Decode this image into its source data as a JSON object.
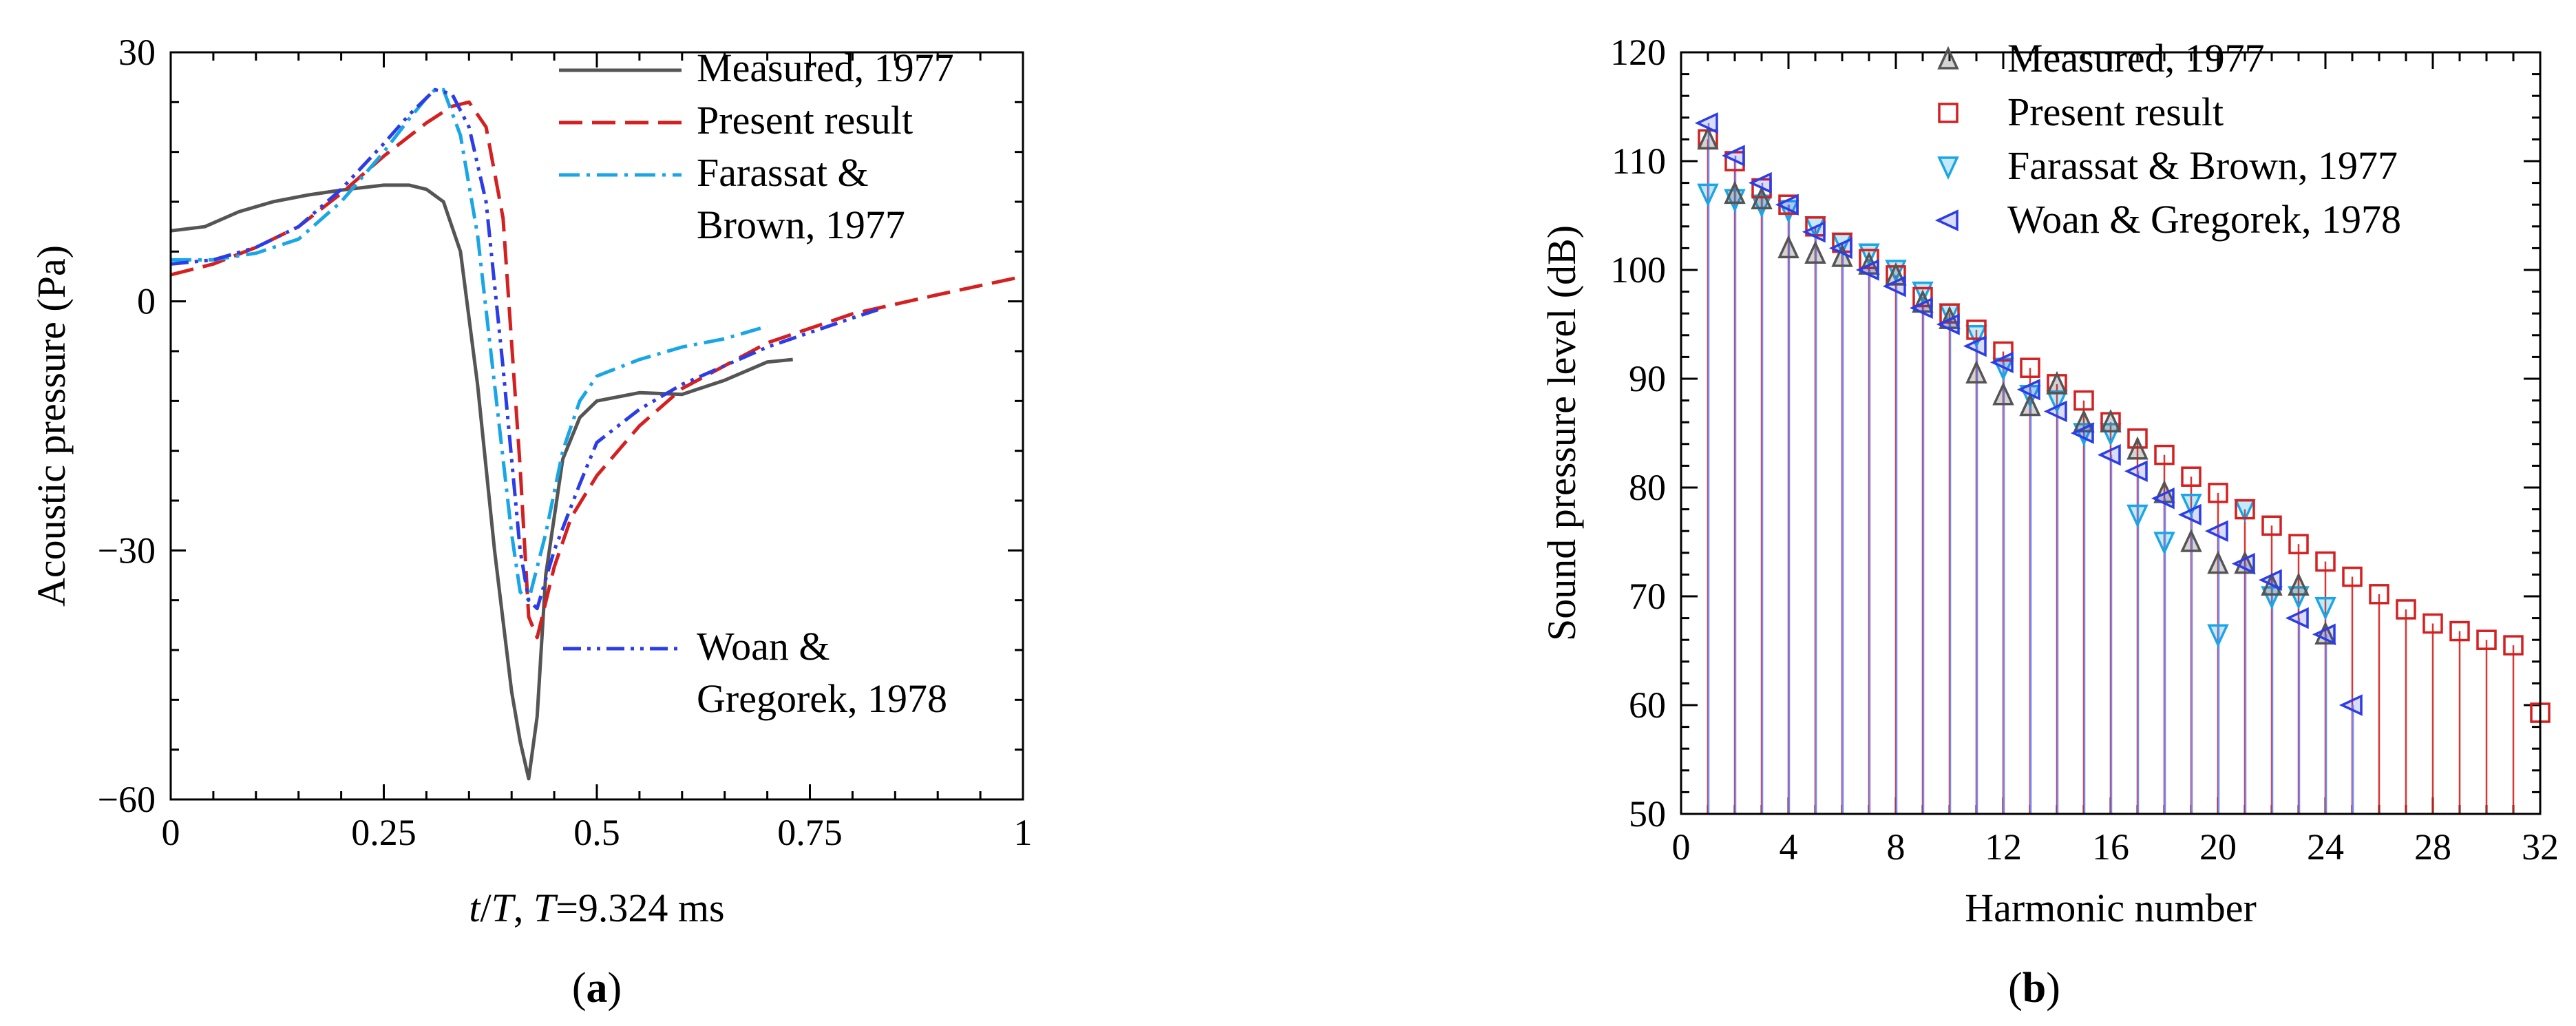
{
  "colors": {
    "measured": "#555555",
    "present": "#d42020",
    "farassat": "#1aa6e6",
    "woan": "#2c3ce6"
  },
  "chart_data": [
    {
      "type": "line",
      "panel_label": "a",
      "xlabel_italic": "t",
      "xlabel_mid": "/",
      "xlabel_italic2": "T",
      "xlabel_rest": ", ",
      "xlabel_italic3": "T",
      "xlabel_tail": "=9.324 ms",
      "ylabel": "Acoustic pressure (Pa)",
      "xlim": [
        0,
        1
      ],
      "ylim": [
        -60,
        30
      ],
      "x_ticks": [
        0,
        0.25,
        0.5,
        0.75,
        1
      ],
      "x_tick_labels": [
        "0",
        "0.25",
        "0.5",
        "0.75",
        "1"
      ],
      "y_ticks": [
        -60,
        -30,
        0,
        30
      ],
      "y_tick_labels": [
        "−60",
        "−30",
        "0",
        "30"
      ],
      "series": [
        {
          "name": "Measured, 1977",
          "color_key": "measured",
          "dash": "solid",
          "points": [
            [
              0,
              8.5
            ],
            [
              0.04,
              9
            ],
            [
              0.08,
              10.8
            ],
            [
              0.12,
              12
            ],
            [
              0.16,
              12.8
            ],
            [
              0.2,
              13.4
            ],
            [
              0.25,
              14
            ],
            [
              0.28,
              14
            ],
            [
              0.3,
              13.5
            ],
            [
              0.32,
              12
            ],
            [
              0.34,
              6
            ],
            [
              0.36,
              -10
            ],
            [
              0.38,
              -30
            ],
            [
              0.4,
              -47
            ],
            [
              0.41,
              -53
            ],
            [
              0.42,
              -57.5
            ],
            [
              0.43,
              -50
            ],
            [
              0.44,
              -33
            ],
            [
              0.46,
              -19
            ],
            [
              0.48,
              -14
            ],
            [
              0.5,
              -12
            ],
            [
              0.55,
              -11
            ],
            [
              0.6,
              -11.2
            ],
            [
              0.65,
              -9.5
            ],
            [
              0.7,
              -7.3
            ],
            [
              0.73,
              -7
            ]
          ]
        },
        {
          "name": "Present result",
          "color_key": "present",
          "dash": "dash",
          "points": [
            [
              0,
              3.2
            ],
            [
              0.05,
              4.5
            ],
            [
              0.1,
              6.5
            ],
            [
              0.15,
              9
            ],
            [
              0.2,
              13
            ],
            [
              0.25,
              17.5
            ],
            [
              0.3,
              21.5
            ],
            [
              0.33,
              23.5
            ],
            [
              0.35,
              24
            ],
            [
              0.37,
              21
            ],
            [
              0.39,
              10
            ],
            [
              0.41,
              -20
            ],
            [
              0.42,
              -38
            ],
            [
              0.43,
              -40.5
            ],
            [
              0.45,
              -32
            ],
            [
              0.47,
              -26
            ],
            [
              0.5,
              -21
            ],
            [
              0.55,
              -15
            ],
            [
              0.6,
              -10.5
            ],
            [
              0.7,
              -5
            ],
            [
              0.8,
              -1.5
            ],
            [
              0.9,
              0.8
            ],
            [
              1.0,
              3
            ]
          ]
        },
        {
          "name": "Farassat & Brown, 1977",
          "color_key": "farassat",
          "dash": "dashdot",
          "points": [
            [
              0,
              5
            ],
            [
              0.05,
              5
            ],
            [
              0.1,
              5.8
            ],
            [
              0.15,
              7.5
            ],
            [
              0.2,
              12
            ],
            [
              0.25,
              18
            ],
            [
              0.28,
              22
            ],
            [
              0.3,
              24.5
            ],
            [
              0.31,
              25.5
            ],
            [
              0.32,
              25.5
            ],
            [
              0.34,
              20
            ],
            [
              0.36,
              8
            ],
            [
              0.38,
              -10
            ],
            [
              0.4,
              -28
            ],
            [
              0.41,
              -35
            ],
            [
              0.42,
              -36
            ],
            [
              0.44,
              -28
            ],
            [
              0.46,
              -18
            ],
            [
              0.48,
              -12
            ],
            [
              0.5,
              -9
            ],
            [
              0.55,
              -7
            ],
            [
              0.6,
              -5.5
            ],
            [
              0.65,
              -4.5
            ],
            [
              0.7,
              -3
            ]
          ]
        },
        {
          "name": "Woan & Gregorek, 1978",
          "color_key": "woan",
          "dash": "dashdotdot",
          "points": [
            [
              0,
              4.5
            ],
            [
              0.05,
              5
            ],
            [
              0.1,
              6.5
            ],
            [
              0.15,
              9
            ],
            [
              0.2,
              13.5
            ],
            [
              0.25,
              19
            ],
            [
              0.28,
              22.5
            ],
            [
              0.31,
              25.5
            ],
            [
              0.33,
              25
            ],
            [
              0.35,
              21
            ],
            [
              0.37,
              12
            ],
            [
              0.39,
              -8
            ],
            [
              0.41,
              -30
            ],
            [
              0.42,
              -36
            ],
            [
              0.43,
              -37
            ],
            [
              0.45,
              -30
            ],
            [
              0.48,
              -22
            ],
            [
              0.5,
              -17
            ],
            [
              0.55,
              -13
            ],
            [
              0.6,
              -10
            ],
            [
              0.7,
              -5.5
            ],
            [
              0.8,
              -2
            ],
            [
              0.83,
              -1
            ]
          ]
        }
      ],
      "legend_top": [
        {
          "lines": [
            "Measured, 1977"
          ],
          "color_key": "measured",
          "dash": "solid"
        },
        {
          "lines": [
            "Present result"
          ],
          "color_key": "present",
          "dash": "dash"
        },
        {
          "lines": [
            "Farassat &",
            "Brown, 1977"
          ],
          "color_key": "farassat",
          "dash": "dashdot"
        }
      ],
      "legend_bottom": {
        "lines": [
          "Woan &",
          "Gregorek, 1978"
        ],
        "color_key": "woan",
        "dash": "dashdotdot"
      },
      "legend_placement": "top-right and lower-right"
    },
    {
      "type": "scatter",
      "panel_label": "b",
      "xlabel": "Harmonic number",
      "ylabel": "Sound pressure level (dB)",
      "xlim": [
        0,
        32
      ],
      "ylim": [
        50,
        120
      ],
      "x_ticks": [
        0,
        4,
        8,
        12,
        16,
        20,
        24,
        28,
        32
      ],
      "x_tick_labels": [
        "0",
        "4",
        "8",
        "12",
        "16",
        "20",
        "24",
        "28",
        "32"
      ],
      "y_ticks": [
        50,
        60,
        70,
        80,
        90,
        100,
        110,
        120
      ],
      "y_tick_labels": [
        "50",
        "60",
        "70",
        "80",
        "90",
        "100",
        "110",
        "120"
      ],
      "stems": {
        "present_harmonics_range": [
          1,
          31
        ],
        "woan_harmonics_range": [
          1,
          25
        ]
      },
      "series": [
        {
          "name": "Measured, 1977",
          "color_key": "measured",
          "marker": "triangle-up",
          "x": [
            1,
            2,
            3,
            4,
            5,
            6,
            7,
            8,
            9,
            10,
            11,
            12,
            13,
            14,
            15,
            16,
            17,
            18,
            19,
            20,
            21,
            22,
            23,
            24
          ],
          "values": [
            112,
            107,
            106.5,
            102,
            101.5,
            101.2,
            100.5,
            99.5,
            97,
            95.5,
            90.5,
            88.5,
            87.5,
            89.5,
            86,
            86,
            83.5,
            79.5,
            75,
            73,
            73,
            71,
            71,
            66.5
          ]
        },
        {
          "name": "Present result",
          "color_key": "present",
          "marker": "square",
          "x": [
            1,
            2,
            3,
            4,
            5,
            6,
            7,
            8,
            9,
            10,
            11,
            12,
            13,
            14,
            15,
            16,
            17,
            18,
            19,
            20,
            21,
            22,
            23,
            24,
            25,
            26,
            27,
            28,
            29,
            30,
            31,
            32
          ],
          "values": [
            112,
            110,
            107.5,
            106,
            104,
            102.5,
            101,
            99.5,
            97.5,
            96,
            94.5,
            92.5,
            91,
            89.5,
            88,
            86,
            84.5,
            83,
            81,
            79.5,
            78,
            76.5,
            74.8,
            73.2,
            71.8,
            70.2,
            68.8,
            67.5,
            66.8,
            66,
            65.5,
            59.3
          ]
        },
        {
          "name": "Farassat & Brown, 1977",
          "color_key": "farassat",
          "marker": "triangle-down",
          "x": [
            1,
            2,
            3,
            4,
            5,
            6,
            7,
            8,
            9,
            10,
            11,
            12,
            13,
            14,
            15,
            16,
            17,
            18,
            19,
            20,
            21,
            22,
            23,
            24
          ],
          "values": [
            107,
            106.5,
            106,
            105.5,
            104,
            102.5,
            101.5,
            100,
            98,
            96,
            94,
            91,
            88.5,
            88,
            85,
            85,
            77.5,
            75,
            78.5,
            66.5,
            78,
            70,
            70,
            69
          ]
        },
        {
          "name": "Woan & Gregorek, 1978",
          "color_key": "woan",
          "marker": "triangle-left",
          "x": [
            1,
            2,
            3,
            4,
            5,
            6,
            7,
            8,
            9,
            10,
            11,
            12,
            13,
            14,
            15,
            16,
            17,
            18,
            19,
            20,
            21,
            22,
            23,
            24,
            25
          ],
          "values": [
            113.5,
            110.5,
            108,
            106,
            103.5,
            102,
            100,
            98.5,
            96.5,
            95,
            93,
            91.5,
            89,
            87,
            85,
            83,
            81.5,
            79,
            77.5,
            76,
            73,
            71.5,
            68,
            66.5,
            60
          ]
        }
      ],
      "legend": [
        {
          "label": "Measured, 1977",
          "color_key": "measured",
          "marker": "triangle-up"
        },
        {
          "label": "Present result",
          "color_key": "present",
          "marker": "square"
        },
        {
          "label": "Farassat & Brown, 1977",
          "color_key": "farassat",
          "marker": "triangle-down"
        },
        {
          "label": "Woan & Gregorek, 1978",
          "color_key": "woan",
          "marker": "triangle-left"
        }
      ],
      "legend_placement": "top-right"
    }
  ]
}
